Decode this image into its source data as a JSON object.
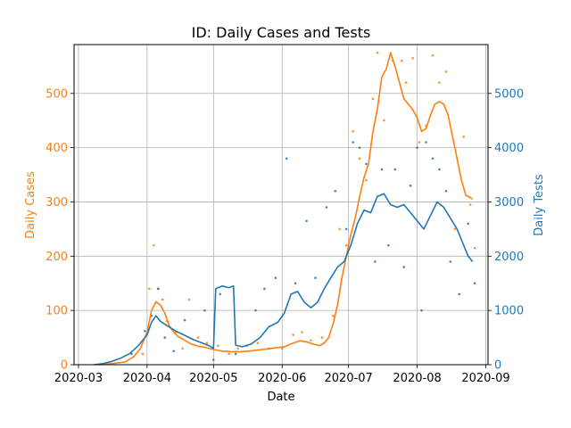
{
  "chart_data": {
    "type": "line",
    "title": "ID: Daily Cases and Tests",
    "xlabel": "Date",
    "ylabel_left": "Daily Cases",
    "ylabel_right": "Daily Tests",
    "colors": {
      "cases": "#ff7f0e",
      "tests": "#1f77b4",
      "grid": "#b0b0b0"
    },
    "grid": true,
    "x_range": [
      "2020-02-28",
      "2020-09-02"
    ],
    "x_ticks": [
      "2020-03",
      "2020-04",
      "2020-05",
      "2020-06",
      "2020-07",
      "2020-08",
      "2020-09"
    ],
    "x_tick_dates": [
      "2020-03-01",
      "2020-04-01",
      "2020-05-01",
      "2020-06-01",
      "2020-07-01",
      "2020-08-01",
      "2020-09-01"
    ],
    "ylim_left": [
      0,
      590
    ],
    "y_ticks_left": [
      0,
      100,
      200,
      300,
      400,
      500
    ],
    "ylim_right": [
      0,
      5900
    ],
    "y_ticks_right": [
      0,
      1000,
      2000,
      3000,
      4000,
      5000
    ],
    "series": [
      {
        "axis": "left",
        "points": [
          [
            "2020-03-10",
            0
          ],
          [
            "2020-03-14",
            1
          ],
          [
            "2020-03-18",
            3
          ],
          [
            "2020-03-22",
            5
          ],
          [
            "2020-03-26",
            15
          ],
          [
            "2020-03-29",
            30
          ],
          [
            "2020-04-01",
            60
          ],
          [
            "2020-04-03",
            100
          ],
          [
            "2020-04-05",
            116
          ],
          [
            "2020-04-07",
            110
          ],
          [
            "2020-04-09",
            95
          ],
          [
            "2020-04-11",
            72
          ],
          [
            "2020-04-13",
            60
          ],
          [
            "2020-04-15",
            52
          ],
          [
            "2020-04-18",
            45
          ],
          [
            "2020-04-21",
            38
          ],
          [
            "2020-04-24",
            34
          ],
          [
            "2020-04-27",
            32
          ],
          [
            "2020-05-01",
            28
          ],
          [
            "2020-05-05",
            25
          ],
          [
            "2020-05-09",
            24
          ],
          [
            "2020-05-13",
            24
          ],
          [
            "2020-05-17",
            25
          ],
          [
            "2020-05-21",
            27
          ],
          [
            "2020-05-25",
            29
          ],
          [
            "2020-05-29",
            31
          ],
          [
            "2020-06-02",
            33
          ],
          [
            "2020-06-06",
            40
          ],
          [
            "2020-06-09",
            44
          ],
          [
            "2020-06-12",
            42
          ],
          [
            "2020-06-15",
            38
          ],
          [
            "2020-06-18",
            35
          ],
          [
            "2020-06-20",
            40
          ],
          [
            "2020-06-22",
            50
          ],
          [
            "2020-06-24",
            75
          ],
          [
            "2020-06-26",
            110
          ],
          [
            "2020-06-28",
            160
          ],
          [
            "2020-06-30",
            200
          ],
          [
            "2020-07-02",
            240
          ],
          [
            "2020-07-04",
            270
          ],
          [
            "2020-07-06",
            310
          ],
          [
            "2020-07-08",
            345
          ],
          [
            "2020-07-10",
            370
          ],
          [
            "2020-07-12",
            430
          ],
          [
            "2020-07-14",
            470
          ],
          [
            "2020-07-16",
            530
          ],
          [
            "2020-07-18",
            545
          ],
          [
            "2020-07-20",
            575
          ],
          [
            "2020-07-22",
            550
          ],
          [
            "2020-07-24",
            520
          ],
          [
            "2020-07-26",
            490
          ],
          [
            "2020-07-28",
            480
          ],
          [
            "2020-07-30",
            470
          ],
          [
            "2020-08-01",
            455
          ],
          [
            "2020-08-03",
            430
          ],
          [
            "2020-08-05",
            435
          ],
          [
            "2020-08-07",
            460
          ],
          [
            "2020-08-09",
            480
          ],
          [
            "2020-08-11",
            485
          ],
          [
            "2020-08-13",
            480
          ],
          [
            "2020-08-15",
            460
          ],
          [
            "2020-08-17",
            420
          ],
          [
            "2020-08-19",
            380
          ],
          [
            "2020-08-21",
            340
          ],
          [
            "2020-08-23",
            312
          ],
          [
            "2020-08-25",
            308
          ],
          [
            "2020-08-26",
            305
          ]
        ]
      },
      {
        "axis": "right",
        "points": [
          [
            "2020-03-08",
            0
          ],
          [
            "2020-03-12",
            20
          ],
          [
            "2020-03-16",
            60
          ],
          [
            "2020-03-20",
            120
          ],
          [
            "2020-03-24",
            200
          ],
          [
            "2020-03-28",
            350
          ],
          [
            "2020-04-01",
            550
          ],
          [
            "2020-04-03",
            780
          ],
          [
            "2020-04-05",
            900
          ],
          [
            "2020-04-07",
            800
          ],
          [
            "2020-04-10",
            720
          ],
          [
            "2020-04-14",
            620
          ],
          [
            "2020-04-18",
            540
          ],
          [
            "2020-04-22",
            460
          ],
          [
            "2020-04-26",
            400
          ],
          [
            "2020-04-29",
            350
          ],
          [
            "2020-05-01",
            300
          ],
          [
            "2020-05-02",
            1400
          ],
          [
            "2020-05-05",
            1450
          ],
          [
            "2020-05-08",
            1420
          ],
          [
            "2020-05-10",
            1450
          ],
          [
            "2020-05-11",
            360
          ],
          [
            "2020-05-14",
            330
          ],
          [
            "2020-05-18",
            380
          ],
          [
            "2020-05-22",
            500
          ],
          [
            "2020-05-26",
            700
          ],
          [
            "2020-05-30",
            780
          ],
          [
            "2020-06-02",
            950
          ],
          [
            "2020-06-05",
            1300
          ],
          [
            "2020-06-08",
            1350
          ],
          [
            "2020-06-11",
            1150
          ],
          [
            "2020-06-14",
            1050
          ],
          [
            "2020-06-17",
            1150
          ],
          [
            "2020-06-20",
            1400
          ],
          [
            "2020-06-23",
            1600
          ],
          [
            "2020-06-26",
            1800
          ],
          [
            "2020-06-29",
            1900
          ],
          [
            "2020-07-02",
            2200
          ],
          [
            "2020-07-05",
            2600
          ],
          [
            "2020-07-08",
            2850
          ],
          [
            "2020-07-11",
            2800
          ],
          [
            "2020-07-14",
            3100
          ],
          [
            "2020-07-17",
            3150
          ],
          [
            "2020-07-20",
            2950
          ],
          [
            "2020-07-23",
            2900
          ],
          [
            "2020-07-26",
            2950
          ],
          [
            "2020-07-29",
            2800
          ],
          [
            "2020-08-01",
            2650
          ],
          [
            "2020-08-04",
            2500
          ],
          [
            "2020-08-07",
            2750
          ],
          [
            "2020-08-10",
            3000
          ],
          [
            "2020-08-13",
            2900
          ],
          [
            "2020-08-16",
            2700
          ],
          [
            "2020-08-19",
            2500
          ],
          [
            "2020-08-22",
            2200
          ],
          [
            "2020-08-24",
            2000
          ],
          [
            "2020-08-26",
            1900
          ]
        ]
      }
    ],
    "scatter": [
      {
        "axis": "left",
        "points": [
          [
            "2020-03-30",
            20
          ],
          [
            "2020-04-02",
            140
          ],
          [
            "2020-04-04",
            220
          ],
          [
            "2020-04-06",
            140
          ],
          [
            "2020-04-08",
            120
          ],
          [
            "2020-04-10",
            80
          ],
          [
            "2020-04-14",
            60
          ],
          [
            "2020-04-17",
            30
          ],
          [
            "2020-04-20",
            120
          ],
          [
            "2020-04-24",
            50
          ],
          [
            "2020-04-28",
            40
          ],
          [
            "2020-05-03",
            35
          ],
          [
            "2020-05-08",
            20
          ],
          [
            "2020-05-12",
            30
          ],
          [
            "2020-05-16",
            35
          ],
          [
            "2020-05-21",
            40
          ],
          [
            "2020-05-26",
            30
          ],
          [
            "2020-06-01",
            30
          ],
          [
            "2020-06-06",
            55
          ],
          [
            "2020-06-10",
            60
          ],
          [
            "2020-06-14",
            45
          ],
          [
            "2020-06-19",
            50
          ],
          [
            "2020-06-24",
            90
          ],
          [
            "2020-06-27",
            250
          ],
          [
            "2020-06-30",
            220
          ],
          [
            "2020-07-03",
            430
          ],
          [
            "2020-07-06",
            380
          ],
          [
            "2020-07-09",
            340
          ],
          [
            "2020-07-12",
            490
          ],
          [
            "2020-07-14",
            575
          ],
          [
            "2020-07-17",
            450
          ],
          [
            "2020-07-21",
            560
          ],
          [
            "2020-07-25",
            560
          ],
          [
            "2020-07-27",
            520
          ],
          [
            "2020-07-30",
            565
          ],
          [
            "2020-08-02",
            410
          ],
          [
            "2020-08-05",
            440
          ],
          [
            "2020-08-08",
            570
          ],
          [
            "2020-08-11",
            520
          ],
          [
            "2020-08-14",
            540
          ],
          [
            "2020-08-18",
            250
          ],
          [
            "2020-08-22",
            420
          ],
          [
            "2020-08-25",
            295
          ],
          [
            "2020-08-27",
            215
          ]
        ]
      },
      {
        "axis": "right",
        "points": [
          [
            "2020-03-25",
            200
          ],
          [
            "2020-03-31",
            620
          ],
          [
            "2020-04-03",
            900
          ],
          [
            "2020-04-06",
            1400
          ],
          [
            "2020-04-09",
            500
          ],
          [
            "2020-04-13",
            250
          ],
          [
            "2020-04-18",
            820
          ],
          [
            "2020-04-27",
            1000
          ],
          [
            "2020-05-01",
            90
          ],
          [
            "2020-05-04",
            1300
          ],
          [
            "2020-05-11",
            200
          ],
          [
            "2020-05-20",
            1000
          ],
          [
            "2020-05-24",
            1400
          ],
          [
            "2020-05-29",
            1600
          ],
          [
            "2020-06-03",
            3800
          ],
          [
            "2020-06-07",
            1500
          ],
          [
            "2020-06-12",
            2650
          ],
          [
            "2020-06-16",
            1600
          ],
          [
            "2020-06-21",
            2900
          ],
          [
            "2020-06-25",
            3200
          ],
          [
            "2020-06-30",
            2500
          ],
          [
            "2020-07-03",
            4100
          ],
          [
            "2020-07-06",
            4000
          ],
          [
            "2020-07-09",
            3700
          ],
          [
            "2020-07-13",
            1900
          ],
          [
            "2020-07-16",
            3600
          ],
          [
            "2020-07-19",
            2200
          ],
          [
            "2020-07-22",
            3600
          ],
          [
            "2020-07-26",
            1800
          ],
          [
            "2020-07-29",
            3300
          ],
          [
            "2020-08-01",
            4000
          ],
          [
            "2020-08-03",
            1000
          ],
          [
            "2020-08-05",
            4100
          ],
          [
            "2020-08-08",
            3800
          ],
          [
            "2020-08-11",
            3600
          ],
          [
            "2020-08-14",
            3200
          ],
          [
            "2020-08-16",
            1900
          ],
          [
            "2020-08-20",
            1300
          ],
          [
            "2020-08-24",
            2600
          ],
          [
            "2020-08-27",
            1500
          ]
        ]
      }
    ]
  }
}
